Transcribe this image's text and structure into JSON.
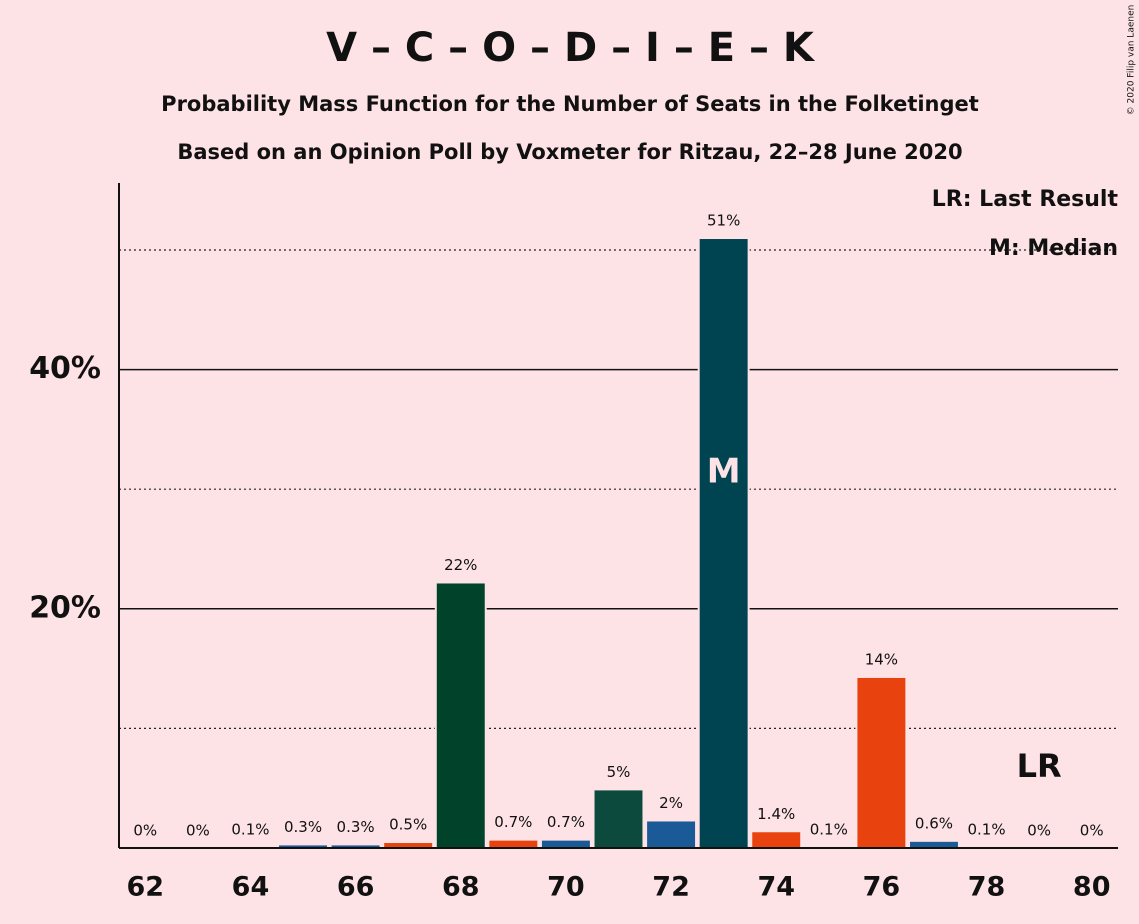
{
  "chart_data": {
    "type": "bar",
    "title": "V – C – O – D – I – E – K",
    "subtitle": "Probability Mass Function for the Number of Seats in the Folketinget",
    "subtitle2": "Based on an Opinion Poll by Voxmeter for Ritzau, 22–28 June 2020",
    "copyright": "© 2020 Filip van Laenen",
    "x": [
      62,
      63,
      64,
      65,
      66,
      67,
      68,
      69,
      70,
      71,
      72,
      73,
      74,
      75,
      76,
      77,
      78,
      79,
      80
    ],
    "values": [
      0,
      0,
      0.1,
      0.3,
      0.3,
      0.5,
      22.2,
      0.7,
      0.7,
      4.9,
      2.3,
      51,
      1.4,
      0.1,
      14.3,
      0.6,
      0.1,
      0,
      0
    ],
    "value_labels": [
      "0%",
      "0%",
      "0.1%",
      "0.3%",
      "0.3%",
      "0.5%",
      "22%",
      "0.7%",
      "0.7%",
      "5%",
      "2%",
      "51%",
      "1.4%",
      "0.1%",
      "14%",
      "0.6%",
      "0.1%",
      "0%",
      "0%"
    ],
    "colors": [
      "#1a5a96",
      "#1a5a96",
      "#1a5a96",
      "#1a5a96",
      "#1a5a96",
      "#e8430f",
      "#00432a",
      "#e8430f",
      "#1a5a96",
      "#0b4a3c",
      "#1a5a96",
      "#004452",
      "#e8430f",
      "#1a5a96",
      "#e8430f",
      "#1a5a96",
      "#1a5a96",
      "#1a5a96",
      "#1a5a96"
    ],
    "xlim": [
      61.5,
      80.5
    ],
    "xticks": [
      62,
      64,
      66,
      68,
      70,
      72,
      74,
      76,
      78,
      80
    ],
    "ylim": [
      0,
      55.6
    ],
    "yticks": [
      {
        "value": 20,
        "label": "20%"
      },
      {
        "value": 40,
        "label": "40%"
      }
    ],
    "minor_grid": [
      10,
      30,
      50
    ],
    "median": {
      "x": 73,
      "label": "M"
    },
    "last_result": {
      "x": 79,
      "label": "LR"
    },
    "legend": [
      "LR: Last Result",
      "M: Median"
    ]
  }
}
